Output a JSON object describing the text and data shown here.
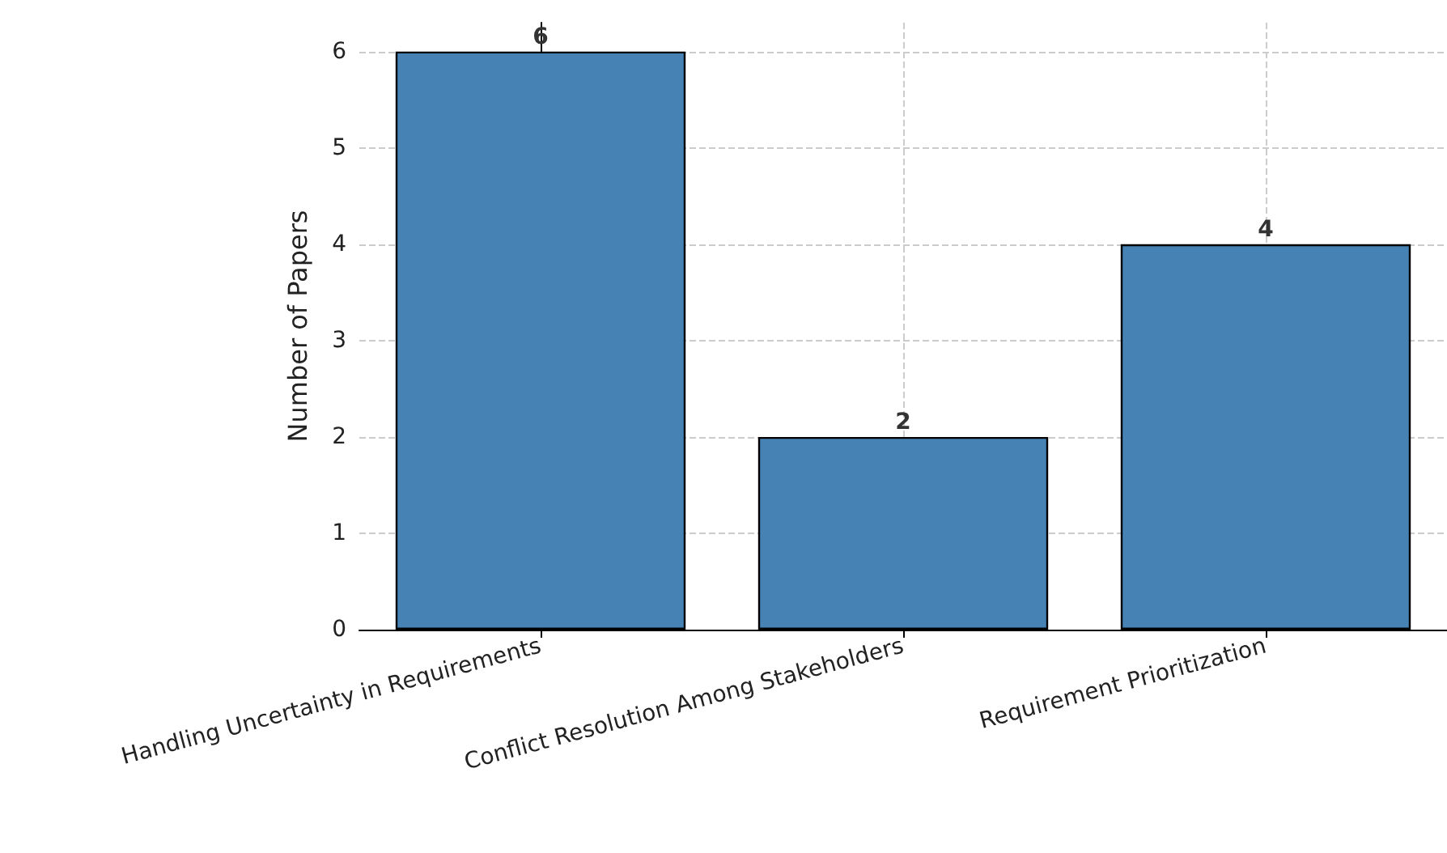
{
  "chart_data": {
    "type": "bar",
    "ylabel": "Number of Papers",
    "categories": [
      "Handling Uncertainty in Requirements",
      "Conflict Resolution Among Stakeholders",
      "Requirement Prioritization"
    ],
    "values": [
      6,
      2,
      4
    ],
    "color": "#4682b4",
    "ylim": [
      0,
      6.3
    ],
    "yticks": [
      0,
      1,
      2,
      3,
      4,
      5,
      6
    ],
    "grid": true,
    "data_labels": true
  }
}
